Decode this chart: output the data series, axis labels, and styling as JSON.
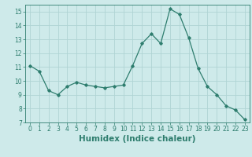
{
  "x": [
    0,
    1,
    2,
    3,
    4,
    5,
    6,
    7,
    8,
    9,
    10,
    11,
    12,
    13,
    14,
    15,
    16,
    17,
    18,
    19,
    20,
    21,
    22,
    23
  ],
  "y": [
    11.1,
    10.7,
    9.3,
    9.0,
    9.6,
    9.9,
    9.7,
    9.6,
    9.5,
    9.6,
    9.7,
    11.1,
    12.7,
    13.4,
    12.7,
    15.2,
    14.8,
    13.1,
    10.9,
    9.6,
    9.0,
    8.2,
    7.9,
    7.2
  ],
  "xlabel": "Humidex (Indice chaleur)",
  "xlim": [
    -0.5,
    23.5
  ],
  "ylim": [
    7,
    15.5
  ],
  "yticks": [
    7,
    8,
    9,
    10,
    11,
    12,
    13,
    14,
    15
  ],
  "xticks": [
    0,
    1,
    2,
    3,
    4,
    5,
    6,
    7,
    8,
    9,
    10,
    11,
    12,
    13,
    14,
    15,
    16,
    17,
    18,
    19,
    20,
    21,
    22,
    23
  ],
  "line_color": "#2e7d6e",
  "marker": "D",
  "marker_size": 1.8,
  "background_color": "#ceeaea",
  "grid_color": "#b0d4d4",
  "tick_label_fontsize": 5.5,
  "xlabel_fontsize": 7.5
}
